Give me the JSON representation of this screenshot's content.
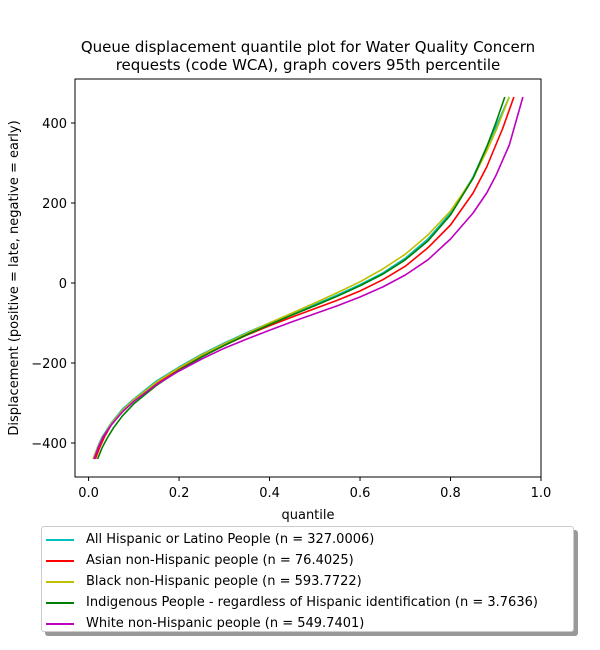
{
  "chart_data": {
    "type": "line",
    "title": "Queue displacement quantile plot for Water Quality Concern\nrequests (code WCA), graph covers 95th percentile",
    "xlabel": "quantile",
    "ylabel": "Displacement (positive = late, negative = early)",
    "xlim": [
      -0.03,
      1.0
    ],
    "ylim": [
      -485,
      510
    ],
    "xticks": [
      0.0,
      0.2,
      0.4,
      0.6,
      0.8,
      1.0
    ],
    "xtick_labels": [
      "0.0",
      "0.2",
      "0.4",
      "0.6",
      "0.8",
      "1.0"
    ],
    "yticks": [
      -400,
      -200,
      0,
      200,
      400
    ],
    "ytick_labels": [
      "−400",
      "−200",
      "0",
      "200",
      "400"
    ],
    "grid": false,
    "legend_position": "below",
    "series": [
      {
        "name": "All Hispanic or Latino People (n = 327.0006)",
        "color": "#00bfbf",
        "x": [
          0.01,
          0.02,
          0.03,
          0.05,
          0.075,
          0.1,
          0.15,
          0.2,
          0.25,
          0.3,
          0.35,
          0.4,
          0.45,
          0.5,
          0.55,
          0.6,
          0.65,
          0.7,
          0.75,
          0.8,
          0.85,
          0.88,
          0.9,
          0.93
        ],
        "y": [
          -440,
          -410,
          -385,
          -350,
          -315,
          -290,
          -245,
          -210,
          -178,
          -150,
          -124,
          -100,
          -77,
          -54,
          -30,
          -4,
          25,
          62,
          110,
          175,
          265,
          340,
          390,
          465
        ]
      },
      {
        "name": "Asian non-Hispanic people (n = 76.4025)",
        "color": "#ff0000",
        "x": [
          0.015,
          0.025,
          0.035,
          0.05,
          0.075,
          0.1,
          0.15,
          0.2,
          0.25,
          0.3,
          0.35,
          0.4,
          0.45,
          0.5,
          0.55,
          0.6,
          0.65,
          0.7,
          0.75,
          0.8,
          0.85,
          0.88,
          0.9,
          0.915,
          0.94
        ],
        "y": [
          -440,
          -410,
          -385,
          -355,
          -320,
          -293,
          -250,
          -215,
          -183,
          -156,
          -130,
          -107,
          -85,
          -64,
          -43,
          -20,
          8,
          42,
          88,
          145,
          225,
          290,
          345,
          385,
          465
        ]
      },
      {
        "name": "Black non-Hispanic people (n = 593.7722)",
        "color": "#bfbf00",
        "x": [
          0.01,
          0.02,
          0.03,
          0.05,
          0.075,
          0.1,
          0.15,
          0.2,
          0.25,
          0.3,
          0.35,
          0.4,
          0.45,
          0.5,
          0.55,
          0.6,
          0.65,
          0.7,
          0.75,
          0.8,
          0.85,
          0.88,
          0.9,
          0.93
        ],
        "y": [
          -440,
          -412,
          -388,
          -352,
          -318,
          -292,
          -248,
          -212,
          -180,
          -152,
          -126,
          -100,
          -75,
          -50,
          -24,
          3,
          35,
          72,
          120,
          180,
          262,
          330,
          380,
          465
        ]
      },
      {
        "name": "Indigenous People - regardless of Hispanic identification (n = 3.7636)",
        "color": "#008000",
        "x": [
          0.02,
          0.03,
          0.04,
          0.055,
          0.075,
          0.1,
          0.15,
          0.2,
          0.25,
          0.3,
          0.35,
          0.4,
          0.45,
          0.5,
          0.55,
          0.6,
          0.65,
          0.7,
          0.75,
          0.8,
          0.85,
          0.88,
          0.9,
          0.92
        ],
        "y": [
          -440,
          -412,
          -390,
          -362,
          -332,
          -302,
          -256,
          -218,
          -185,
          -156,
          -129,
          -104,
          -80,
          -57,
          -33,
          -7,
          22,
          58,
          105,
          170,
          262,
          340,
          400,
          465
        ]
      },
      {
        "name": "White non-Hispanic people (n = 549.7401)",
        "color": "#bf00bf",
        "x": [
          0.012,
          0.022,
          0.032,
          0.05,
          0.075,
          0.1,
          0.15,
          0.2,
          0.25,
          0.3,
          0.35,
          0.4,
          0.45,
          0.5,
          0.55,
          0.6,
          0.65,
          0.7,
          0.75,
          0.8,
          0.85,
          0.88,
          0.9,
          0.93,
          0.96
        ],
        "y": [
          -440,
          -410,
          -385,
          -355,
          -322,
          -296,
          -254,
          -220,
          -190,
          -163,
          -140,
          -118,
          -97,
          -77,
          -57,
          -35,
          -10,
          20,
          58,
          110,
          175,
          225,
          268,
          345,
          465
        ]
      }
    ]
  }
}
